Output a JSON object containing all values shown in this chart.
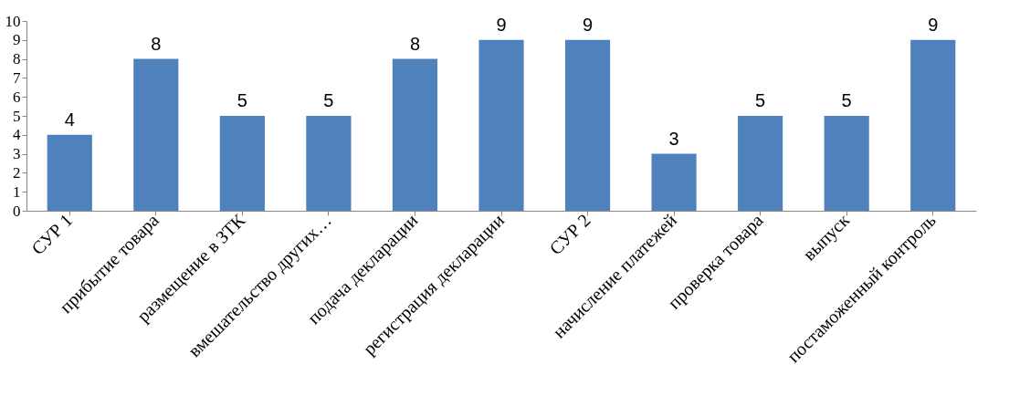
{
  "chart_data": {
    "type": "bar",
    "categories": [
      "СУР 1",
      "прибытие товара",
      "размещение в ЗТК",
      "вмешательство других…",
      "подача декларации",
      "регистрация декларации",
      "СУР 2",
      "начисление платежей",
      "проверка товара",
      "выпуск",
      "постаможенный контроль"
    ],
    "values": [
      4,
      8,
      5,
      5,
      8,
      9,
      9,
      3,
      5,
      5,
      9
    ],
    "color": "#4f81bd",
    "ylim": [
      0,
      10
    ],
    "yticks": [
      0,
      1,
      2,
      3,
      4,
      5,
      6,
      7,
      8,
      9,
      10
    ],
    "grid": false,
    "data_labels": true
  }
}
